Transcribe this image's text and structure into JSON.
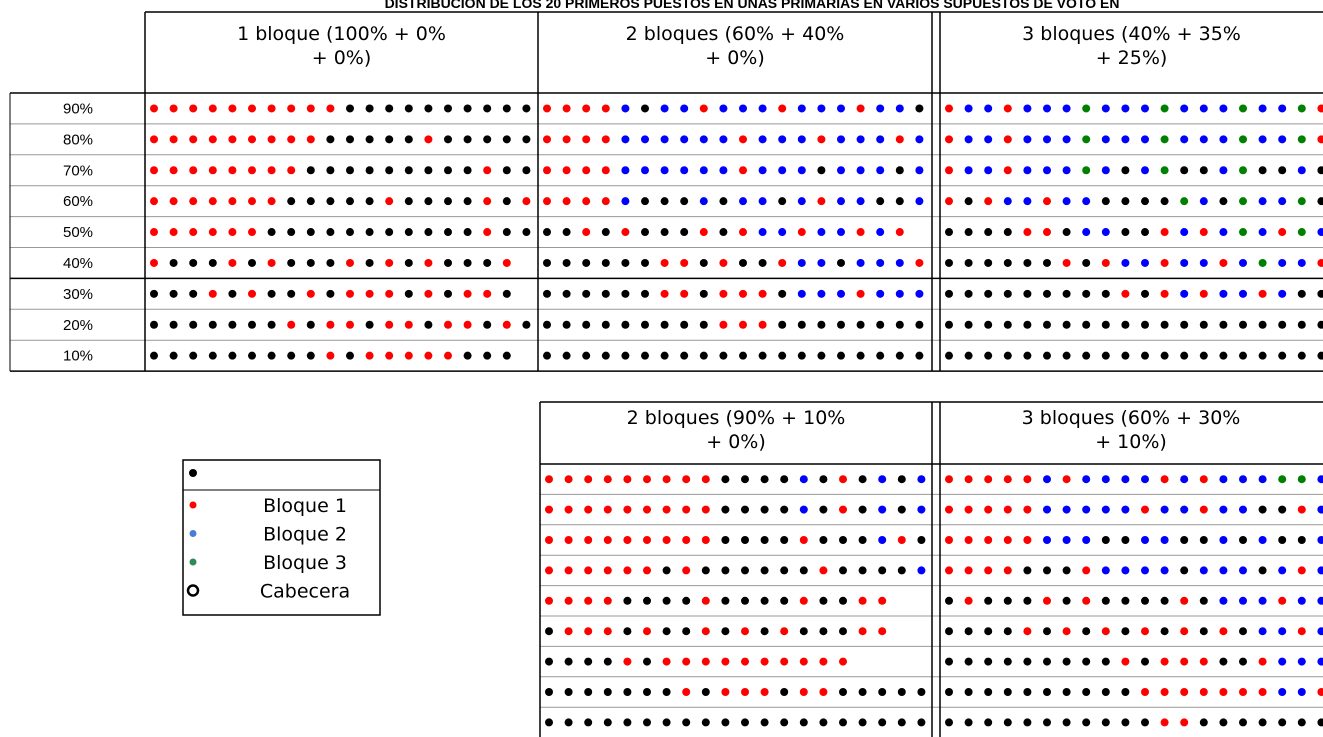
{
  "title": "DISTRIBUCIÓN DE LOS 20 PRIMEROS PUESTOS EN UNAS PRIMARIAS EN VARIOS SUPUESTOS DE VOTO EN",
  "row_labels": [
    "90%",
    "80%",
    "70%",
    "60%",
    "50%",
    "40%",
    "30%",
    "20%",
    "10%"
  ],
  "table1": {
    "headers": [
      [
        "1 bloque (100% + 0%",
        "+ 0%)"
      ],
      [
        "2 bloques (60% + 40%",
        "+ 0%)"
      ],
      [
        "3 bloques (40% + 35%",
        "+ 25%)"
      ]
    ]
  },
  "table2": {
    "headers": [
      [
        "2 bloques (90% + 10%",
        "+ 0%)"
      ],
      [
        "3 bloques (60% + 30%",
        "+ 10%)"
      ]
    ]
  },
  "legend": [
    "Bloque 1",
    "Bloque 2",
    "Bloque 3",
    "Cabecera"
  ]
}
